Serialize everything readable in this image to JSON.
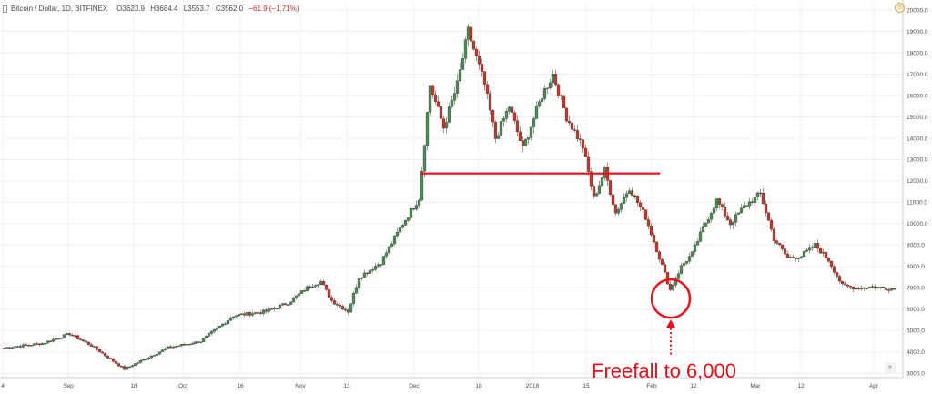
{
  "header": {
    "title": "Bitcoin / Dollar, 1D, BITFINEX",
    "open": "O3623.9",
    "high": "H3684.4",
    "low": "L3553.7",
    "close": "C3562.0",
    "change": "−61.9 (−1.71%)"
  },
  "icons": {
    "settings": "gear-icon",
    "scroll": "double-chevron-right-icon",
    "symbol": "symbol-icon"
  },
  "annotation": {
    "text": "Freefall to 6,000",
    "color": "#e8101a"
  },
  "colors": {
    "up": "#4f8a56",
    "down": "#c0392b",
    "line": "#e8101a",
    "grid": "#f0f0f0"
  },
  "chart_data": {
    "type": "candlestick",
    "ylim": [
      2800,
      20300
    ],
    "y_ticks": [
      "3000.0",
      "4000.0",
      "5000.0",
      "6000.0",
      "7000.0",
      "8000.0",
      "9000.0",
      "10000.0",
      "11000.0",
      "12000.0",
      "13000.0",
      "14000.0",
      "15000.0",
      "16000.0",
      "17000.0",
      "18000.0",
      "19000.0",
      "20000.0"
    ],
    "x_labels": [
      "4",
      "Sep",
      "18",
      "Oct",
      "16",
      "Nov",
      "13",
      "Dec",
      "18",
      "2018",
      "15",
      "Feb",
      "12",
      "Mar",
      "12",
      "Apr"
    ],
    "horizontal_line": {
      "y": 12350,
      "start_label": "Dec",
      "end_label": "2018 + ~5 weeks"
    },
    "circle_annotation": {
      "y": 6500
    },
    "anchors": [
      {
        "t": 0,
        "c": 4200
      },
      {
        "t": 14,
        "c": 4400
      },
      {
        "t": 24,
        "c": 4850
      },
      {
        "t": 32,
        "c": 4300
      },
      {
        "t": 44,
        "c": 3200
      },
      {
        "t": 52,
        "c": 3700
      },
      {
        "t": 60,
        "c": 4200
      },
      {
        "t": 72,
        "c": 4500
      },
      {
        "t": 84,
        "c": 5700
      },
      {
        "t": 96,
        "c": 5900
      },
      {
        "t": 104,
        "c": 6300
      },
      {
        "t": 112,
        "c": 7100
      },
      {
        "t": 116,
        "c": 7300
      },
      {
        "t": 120,
        "c": 6400
      },
      {
        "t": 126,
        "c": 5900
      },
      {
        "t": 130,
        "c": 7500
      },
      {
        "t": 138,
        "c": 8200
      },
      {
        "t": 146,
        "c": 10000
      },
      {
        "t": 152,
        "c": 11200
      },
      {
        "t": 156,
        "c": 16500
      },
      {
        "t": 161,
        "c": 14500
      },
      {
        "t": 166,
        "c": 16500
      },
      {
        "t": 170,
        "c": 19000
      },
      {
        "t": 176,
        "c": 16500
      },
      {
        "t": 180,
        "c": 14000
      },
      {
        "t": 185,
        "c": 15500
      },
      {
        "t": 190,
        "c": 13500
      },
      {
        "t": 197,
        "c": 16000
      },
      {
        "t": 201,
        "c": 17000
      },
      {
        "t": 206,
        "c": 15000
      },
      {
        "t": 212,
        "c": 13600
      },
      {
        "t": 216,
        "c": 11200
      },
      {
        "t": 220,
        "c": 12500
      },
      {
        "t": 224,
        "c": 10500
      },
      {
        "t": 229,
        "c": 11700
      },
      {
        "t": 235,
        "c": 10300
      },
      {
        "t": 239,
        "c": 8800
      },
      {
        "t": 244,
        "c": 6900
      },
      {
        "t": 248,
        "c": 8000
      },
      {
        "t": 252,
        "c": 8600
      },
      {
        "t": 256,
        "c": 9800
      },
      {
        "t": 261,
        "c": 11100
      },
      {
        "t": 266,
        "c": 10000
      },
      {
        "t": 271,
        "c": 10800
      },
      {
        "t": 277,
        "c": 11400
      },
      {
        "t": 282,
        "c": 9300
      },
      {
        "t": 287,
        "c": 8400
      },
      {
        "t": 292,
        "c": 8500
      },
      {
        "t": 297,
        "c": 9000
      },
      {
        "t": 302,
        "c": 8300
      },
      {
        "t": 307,
        "c": 7100
      },
      {
        "t": 312,
        "c": 7000
      },
      {
        "t": 318,
        "c": 7050
      },
      {
        "t": 326,
        "c": 6950
      }
    ]
  }
}
